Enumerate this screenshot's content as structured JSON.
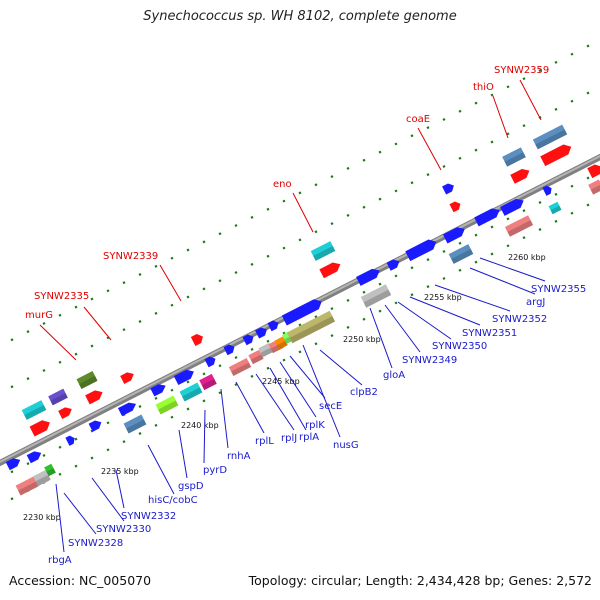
{
  "title": "Synechococcus sp. WH 8102, complete genome",
  "footer": {
    "accession": "Accession: NC_005070",
    "summary": "Topology: circular; Length: 2,434,428 bp; Genes: 2,572"
  },
  "colors": {
    "backbone": "#808080",
    "label_top": "#e00000",
    "label_bottom": "#1a1acc",
    "tick": "#1a7a1a"
  },
  "scale_ticks": [
    "2230 kbp",
    "2235 kbp",
    "2240 kbp",
    "2245 kbp",
    "2250 kbp",
    "2255 kbp",
    "2260 kbp"
  ],
  "top_labels": [
    "murG",
    "SYNW2335",
    "SYNW2339",
    "eno",
    "coaE",
    "thiO",
    "SYNW2359"
  ],
  "bottom_labels": [
    "rbgA",
    "SYNW2328",
    "SYNW2330",
    "SYNW2332",
    "hisC/cobC",
    "gspD",
    "pyrD",
    "rnhA",
    "rplL",
    "rplJ",
    "rplA",
    "rplK",
    "secE",
    "nusG",
    "clpB2",
    "gloA",
    "SYNW2349",
    "SYNW2350",
    "SYNW2351",
    "SYNW2352",
    "argJ",
    "SYNW2355"
  ]
}
